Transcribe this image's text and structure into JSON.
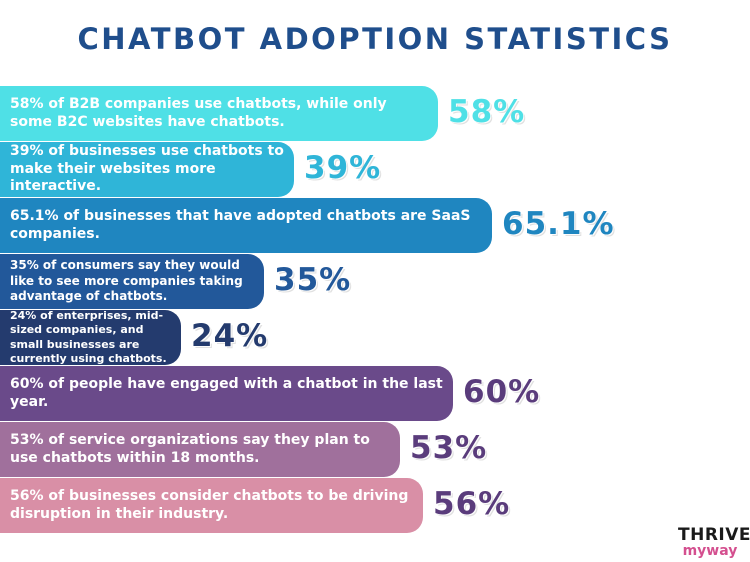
{
  "title": "CHATBOT ADOPTION STATISTICS",
  "chart_data": {
    "type": "bar",
    "orientation": "horizontal",
    "categories": [
      "58% of B2B companies use chatbots, while only some B2C websites have chatbots.",
      "39% of businesses use chatbots to make their websites more interactive.",
      "65.1% of businesses that have adopted chatbots are SaaS companies.",
      "35% of consumers say they would like to see more companies taking advantage of chatbots.",
      "24% of enterprises, mid-sized companies, and small businesses are currently using chatbots.",
      "60% of people have engaged with a chatbot in the last year.",
      "53% of service organizations say they plan to use chatbots within 18 months.",
      "56% of businesses consider chatbots to be driving disruption in their industry."
    ],
    "values": [
      58,
      39,
      65.1,
      35,
      24,
      60,
      53,
      56
    ],
    "value_labels": [
      "58%",
      "39%",
      "65.1%",
      "35%",
      "24%",
      "60%",
      "53%",
      "56%"
    ],
    "colors": [
      "#4fe0e6",
      "#2fb5d8",
      "#1f86c0",
      "#22589a",
      "#243b6e",
      "#6a4a8a",
      "#a0709c",
      "#d98fa6"
    ],
    "label_colors": [
      "#4fe0e6",
      "#2fb5d8",
      "#1f86c0",
      "#22589a",
      "#243b6e",
      "#5a3c7c",
      "#5a3c7c",
      "#5a3c7c"
    ],
    "xlim": [
      0,
      100
    ],
    "grid": false
  },
  "logo": {
    "top": "THRIVE",
    "bottom": "myway"
  }
}
